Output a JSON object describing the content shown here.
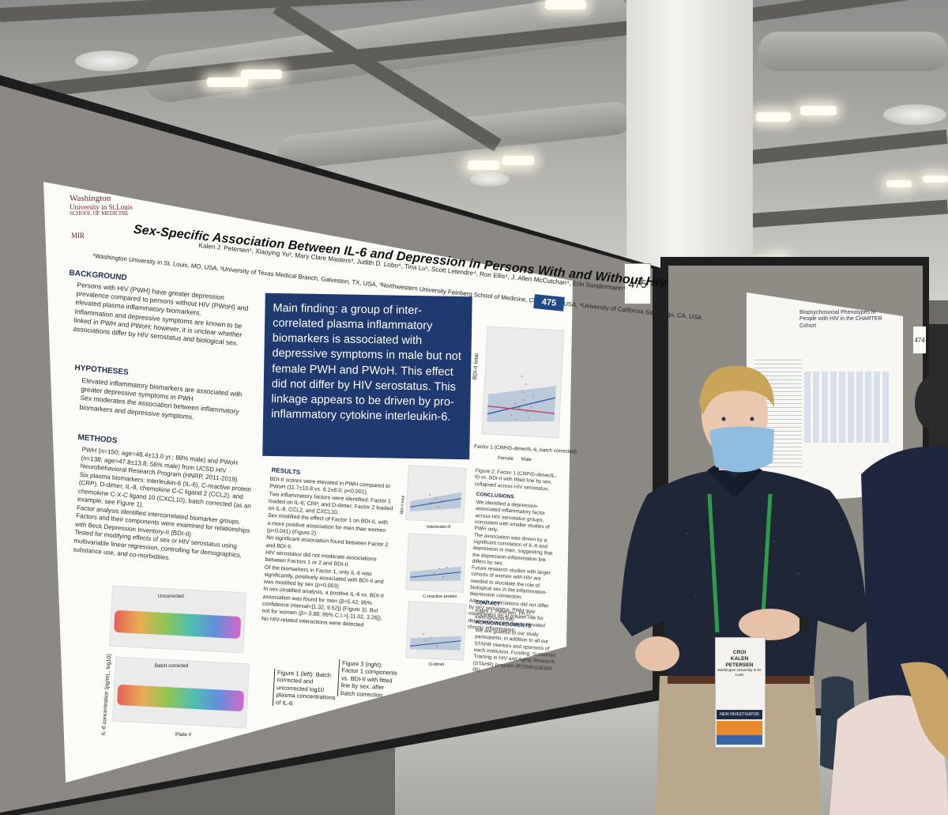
{
  "poster": {
    "logo": {
      "line1": "Washington",
      "line2": "University in St.Louis",
      "line3": "SCHOOL OF MEDICINE",
      "mir": "MIR"
    },
    "title": "Sex-Specific Association Between IL-6 and Depression in Persons With and Without HIV",
    "authors": "Kalen J. Petersen¹, Xiaoying Yu², Mary Clare Masters³, Judith D. Lobo⁴, Tina Lu¹, Scott Letendre⁴, Ron Ellis⁴, J. Allen McCutchan⁴, Erin Sundermann⁴",
    "affiliations": "¹Washington University in St. Louis, MO, USA, ²University of Texas Medical Branch, Galveston, TX, USA, ³Northwestern University Feinberg School of Medicine, Chicago, IL, USA, ⁴University of California San Diego, CA, USA",
    "badge": "475",
    "background_h": "BACKGROUND",
    "background": [
      "Persons with HIV (PWH) have greater depression prevalence compared to persons without HIV (PWoH) and elevated plasma inflammatory biomarkers.",
      "Inflammation and depressive symptoms are known to be linked in PWH and PWoH; however, it is unclear whether associations differ by HIV serostatus and biological sex."
    ],
    "hypotheses_h": "HYPOTHESES",
    "hypotheses": [
      "Elevated inflammatory biomarkers are associated with greater depressive symptoms in PWH",
      "Sex moderates the association between inflammatory biomarkers and depressive symptoms."
    ],
    "methods_h": "METHODS",
    "methods": [
      "PWH (n=150; age=48.4±13.0 yr.; 88% male) and PWoH (n=138; age=47.8±13.8; 56% male) from UCSD HIV Neurobehavioral Research Program (HNRP, 2011-2019)",
      "Six plasma biomarkers: interleukin-6 (IL-6), C-reactive protein (CRP), D-dimer, IL-8, chemokine C-C ligand 2 (CCL2), and chemokine C-X-C ligand 10 (CXCL10), batch corrected (as an example, see Figure 1).",
      "Factor analysis identified intercorrelated biomarker groups. Factors and their components were examined for relationships with Beck Depression Inventory-II (BDI-II)",
      "Tested for modifying effects of sex or HIV serostatus using multivariable linear regression, controlling for demographics, substance use, and co-morbidities."
    ],
    "main_finding": "Main finding: a group of inter-correlated plasma inflammatory biomarkers is associated with depressive symptoms in male but not female PWH and PWoH. This effect did not differ by HIV serostatus. This linkage appears to be driven by pro-inflammatory cytokine interleukin-6.",
    "results_h": "RESULTS",
    "results": [
      "BDI-II scores were elevated in PWH compared to PWoH (11.7±10.8 vs. 6.2±8.0; p<0.001).",
      "Two inflammatory factors were identified: Factor 1 loaded on IL-6, CRP, and D-dimer; Factor 2 loaded on IL-8, CCL2, and CXCL10.",
      "Sex modified the effect of Factor 1 on BDI-II, with a more positive association for men than women (p=0.041) (Figure 2)",
      "No significant association found between Factor 2 and BDI-II.",
      "HIV serostatus did not moderate associations between Factors 1 or 2 and BDI-II.",
      "Of the biomarkers in Factor 1, only IL-6 was significantly, positively associated with BDI-II and was modified by sex (p=0.003)",
      "In sex-stratified analysis, a positive IL-6 vs. BDI-II association was found for men (β=5.42; 95% confidence interval=[1.32, 9.52]) (Figure 3). But not for women (β=-3.88; 95% C.I.=[-11.02, 3.26]).",
      "No HIV-related interactions were detected"
    ],
    "fig2_caption": "Figure 2: Factor 1 (CRP/D-dimer/IL-6) vs. BDI-II with fitted line by sex, collapsed across HIV serostatus.",
    "fig2_xlabel": "Factor 1 (CRP/D-dimer/IL-6, batch corrected)",
    "fig2_ylabel": "BDI-II total",
    "fig2_legend": [
      "Female",
      "Male"
    ],
    "conclusions_h": "CONCLUSIONS",
    "conclusions": [
      "We identified a depression-associated inflammatory factor across HIV serostatus groups, consistent with smaller studies of PWH only.",
      "The association was driven by a significant correlation of IL-6 and depression in men, suggesting that the depression-inflammation link differs by sex.",
      "Future research studies with larger cohorts of women with HIV are needed to elucidate the role of biological sex in the inflammation-depression connection.",
      "Although associations did not differ by HIV serostatus, PWH may nonetheless be at greater risk for depression in part due to elevated chronic inflammation."
    ],
    "contact_h": "CONTACT",
    "contact": "Kalen J. Petersen, Ph.D., kalen@wustl.edu",
    "ack_h": "ACKNOWLEDGMENTS",
    "ack": "We are grateful to our study participants, in addition to all our STAHR mentors and sponsors of each institution. Funding: Sustained Training in HIV and Aging Research (STAHR) program (R25MH108389-05)",
    "fig1_caption": "Figure 1 (left): Batch corrected and uncorrected log10 plasma concentrations of IL-6.",
    "fig1_top_label": "Uncorrected",
    "fig1_bottom_label": "Batch-corrected",
    "fig1_xlabel": "Plate #",
    "fig1_ylabel": "IL-6 concentration (pg/mL, log10)",
    "fig3_caption": "Figure 3 (right): Factor 1 components vs. BDI-II with fitted line by sex, after batch correction",
    "fig3_xlabels": [
      "Interleukin-6",
      "C-reactive protein",
      "D-dimer"
    ],
    "fig3_ylabel": "BDI-II total"
  },
  "booth_tag": "475",
  "booth_tag2": "474",
  "poster2": {
    "title": "Biopsychosocial Phenotypes in People with HIV in the CHARTER Cohort"
  },
  "badge_card": {
    "org": "CROI",
    "name": "KALEN PETERSEN",
    "affil": "Washington University in St. Louis",
    "banner": "NEW INVESTIGATOR"
  },
  "colors": {
    "poster_bg": "#fbfbf8",
    "main_box": "#1e3a6e",
    "board": "#8c8883",
    "shirt": "#1f2638",
    "lanyard": "#2e9a4a"
  }
}
